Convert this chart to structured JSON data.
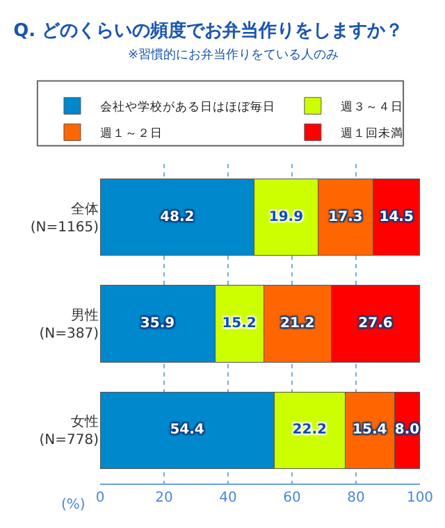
{
  "chart_data": {
    "type": "bar",
    "orientation": "horizontal",
    "stacked": true,
    "title": "Q. どのくらいの頻度でお弁当作りをしますか？",
    "subtitle": "※習慣的にお弁当作りをている人のみ",
    "xlabel": "(%)",
    "categories": [
      "全体\n(N=1165)",
      "男性\n(N=387)",
      "女性\n(N=778)"
    ],
    "series": [
      {
        "name": "会社や学校がある日はほぼ毎日",
        "color": "#0088cc",
        "values": [
          48.2,
          35.9,
          54.4
        ],
        "value_labels": [
          "48.2",
          "35.9",
          "54.4"
        ]
      },
      {
        "name": "週３～４日",
        "color": "#ccff00",
        "values": [
          19.9,
          15.2,
          22.2
        ],
        "value_labels": [
          "19.9",
          "15.2",
          "22.2"
        ]
      },
      {
        "name": "週１～２日",
        "color": "#ff6600",
        "values": [
          17.3,
          21.2,
          15.4
        ],
        "value_labels": [
          "17.3",
          "21.2",
          "15.4"
        ]
      },
      {
        "name": "週１回未満",
        "color": "#ff0000",
        "values": [
          14.5,
          27.6,
          8.0
        ],
        "value_labels": [
          "14.5",
          "27.6",
          "8.0"
        ]
      }
    ],
    "xlim": [
      0,
      100
    ],
    "xticks": [
      0,
      20,
      40,
      60,
      80,
      100
    ],
    "grid": "x",
    "legend": "top"
  }
}
